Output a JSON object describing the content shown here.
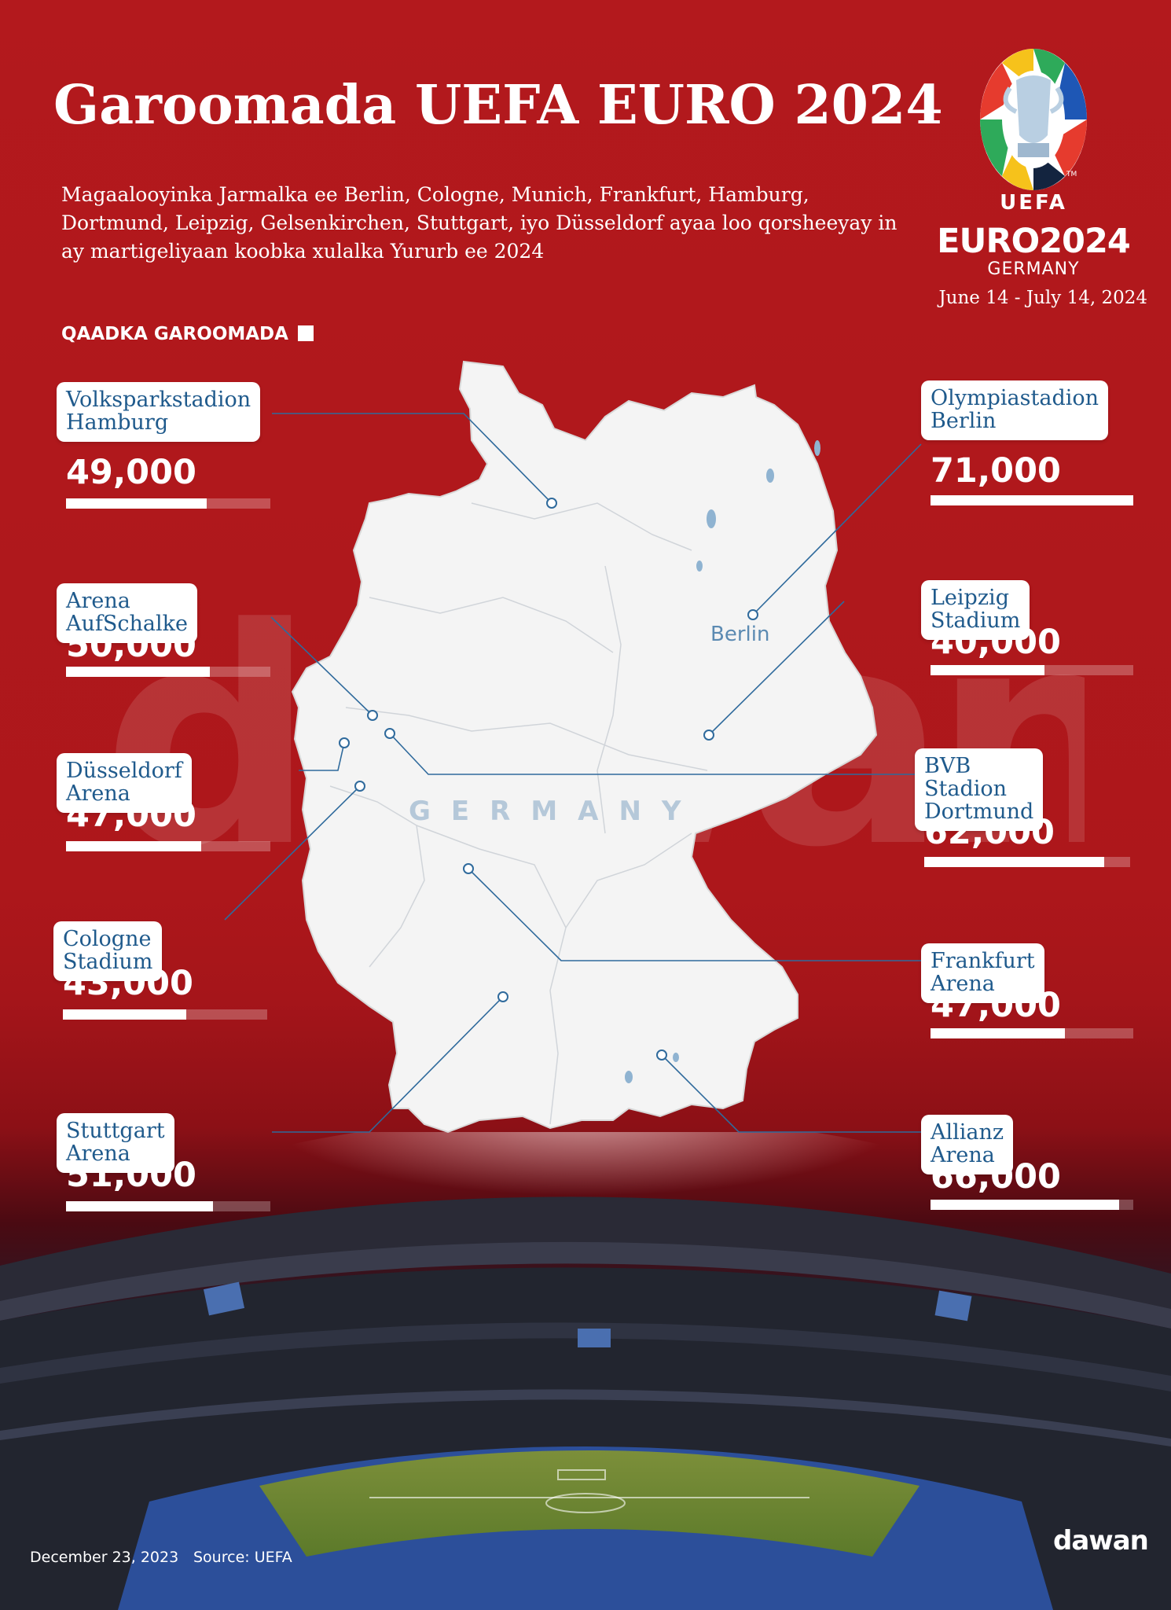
{
  "header": {
    "title": "Garoomada UEFA EURO 2024",
    "subtitle": "Magaalooyinka Jarmalka ee Berlin, Cologne, Munich, Frankfurt, Hamburg, Dortmund, Leipzig, Gelsenkirchen, Stuttgart, iyo Düsseldorf ayaa loo qorsheeyay in ay martigeliyaan koobka xulalka Yururb ee 2024",
    "dates": "June 14 - July 14, 2024"
  },
  "logo": {
    "uefa": "UEFA",
    "euro": "EURO2024",
    "country": "GERMANY",
    "trademark": "TM"
  },
  "legend": {
    "label": "QAADKA GAROOMADA"
  },
  "map": {
    "country_label": "GERMANY",
    "city_label": "Berlin",
    "land_color": "#f4f4f4",
    "line_color": "#6fa0c8"
  },
  "stadiums": [
    {
      "name": "Volksparkstadion\nHamburg",
      "capacity": "49,000",
      "value": 49000
    },
    {
      "name": "Arena AufSchalke",
      "capacity": "50,000",
      "value": 50000
    },
    {
      "name": "Düsseldorf Arena",
      "capacity": "47,000",
      "value": 47000
    },
    {
      "name": "Cologne Stadium",
      "capacity": "43,000",
      "value": 43000
    },
    {
      "name": "Stuttgart Arena",
      "capacity": "51,000",
      "value": 51000
    },
    {
      "name": "Olympiastadion\nBerlin",
      "capacity": "71,000",
      "value": 71000
    },
    {
      "name": "Leipzig Stadium",
      "capacity": "40,000",
      "value": 40000
    },
    {
      "name": "BVB Stadion\nDortmund",
      "capacity": "62,000",
      "value": 62000
    },
    {
      "name": "Frankfurt Arena",
      "capacity": "47,000",
      "value": 47000
    },
    {
      "name": "Allianz Arena",
      "capacity": "66,000",
      "value": 66000
    }
  ],
  "bar_max": 71000,
  "footer": {
    "date": "December 23, 2023",
    "source": "Source: UEFA",
    "brand": "dawan"
  },
  "colors": {
    "background": "#b0181c",
    "label_text": "#1f5a8c",
    "bar": "#ffffff"
  }
}
